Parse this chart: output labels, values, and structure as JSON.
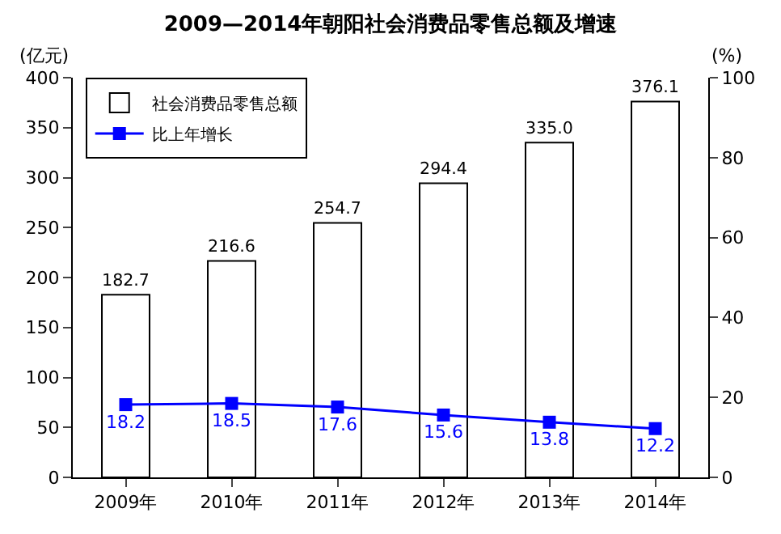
{
  "chart_data": {
    "type": "bar",
    "title": "2009—2014年朝阳社会消费品零售总额及增速",
    "ylabel": "(亿元)",
    "y2label": "(%)",
    "categories": [
      "2009年",
      "2010年",
      "2011年",
      "2012年",
      "2013年",
      "2014年"
    ],
    "series": [
      {
        "name": "社会消费品零售总额",
        "color": "#ffffff",
        "values": [
          182.7,
          216.6,
          254.7,
          294.4,
          335.0,
          376.1
        ],
        "value_labels": [
          "182.7",
          "216.6",
          "254.7",
          "294.4",
          "335.0",
          "376.1"
        ]
      },
      {
        "name": "比上年增长",
        "type": "line",
        "axis": "y2",
        "color": "#0000ff",
        "marker": "square",
        "values": [
          18.2,
          18.5,
          17.6,
          15.6,
          13.8,
          12.2
        ],
        "value_labels": [
          "18.2",
          "18.5",
          "17.6",
          "15.6",
          "13.8",
          "12.2"
        ]
      }
    ],
    "ylim": [
      0,
      400
    ],
    "yticks": [
      0,
      50,
      100,
      150,
      200,
      250,
      300,
      350,
      400
    ],
    "y2lim": [
      0,
      100
    ],
    "y2ticks": [
      0,
      20,
      40,
      60,
      80,
      100
    ],
    "legend": "top left"
  }
}
